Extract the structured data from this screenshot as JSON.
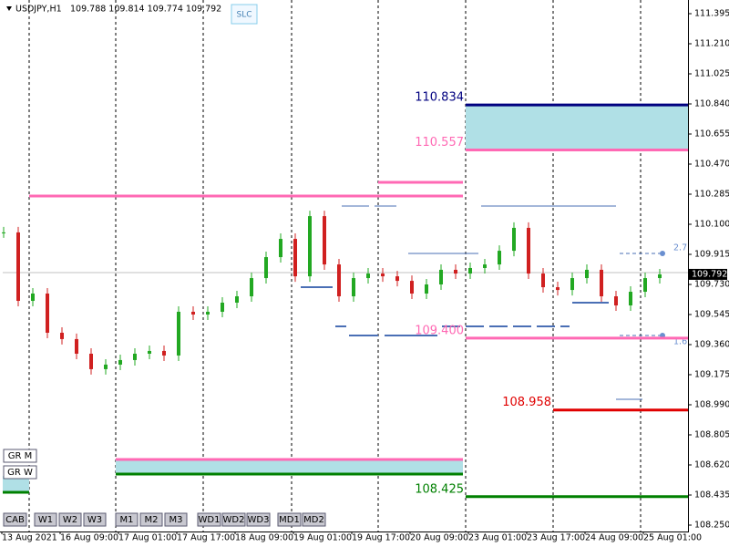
{
  "header": {
    "symbol": "USDJPY,H1",
    "ohlc": "109.788 109.814 109.774 109.792"
  },
  "buttons": {
    "slc": "SLC",
    "cab": "CAB",
    "timeframes": [
      "W1",
      "W2",
      "W3",
      "M1",
      "M2",
      "M3",
      "WD1",
      "WD2",
      "WD3",
      "MD1",
      "MD2"
    ],
    "groups": [
      "GR M",
      "GR W"
    ]
  },
  "price_axis": {
    "range": [
      108.25,
      111.395
    ],
    "ticks": [
      "111.395",
      "111.210",
      "111.025",
      "110.840",
      "110.655",
      "110.470",
      "110.285",
      "110.100",
      "109.915",
      "109.730",
      "109.545",
      "109.360",
      "109.175",
      "108.990",
      "108.805",
      "108.620",
      "108.435",
      "108.250"
    ]
  },
  "current_price": {
    "value": 109.792,
    "label": "109.792"
  },
  "time_axis": [
    "13 Aug 2021",
    "16 Aug 09:00",
    "17 Aug 01:00",
    "17 Aug 17:00",
    "18 Aug 09:00",
    "19 Aug 01:00",
    "19 Aug 17:00",
    "20 Aug 09:00",
    "23 Aug 01:00",
    "23 Aug 17:00",
    "24 Aug 09:00",
    "25 Aug 01:00"
  ],
  "levels": [
    {
      "value": 110.834,
      "label": "110.834",
      "color": "#000080"
    },
    {
      "value": 110.557,
      "label": "110.557",
      "color": "#ff69b4"
    },
    {
      "value": 109.4,
      "label": "109.400",
      "color": "#ff69b4"
    },
    {
      "value": 108.958,
      "label": "108.958",
      "color": "#e00000"
    },
    {
      "value": 108.425,
      "label": "108.425",
      "color": "#008000"
    }
  ],
  "ratios": [
    "2.7",
    "1.6"
  ],
  "candles": [
    110.05,
    109.629,
    109.674,
    109.433,
    109.394,
    109.304,
    109.209,
    109.237,
    109.265,
    109.304,
    109.321,
    109.293,
    109.562,
    109.545,
    109.562,
    109.618,
    109.657,
    109.769,
    109.898,
    110.01,
    109.78,
    110.15,
    109.853,
    109.657,
    109.769,
    109.797,
    109.78,
    109.752,
    109.674,
    109.73,
    109.82,
    109.797,
    109.831,
    109.853,
    109.937,
    110.078,
    109.797,
    109.713,
    109.696,
    109.769,
    109.82,
    109.657,
    109.601,
    109.685,
    109.769,
    109.792
  ]
}
